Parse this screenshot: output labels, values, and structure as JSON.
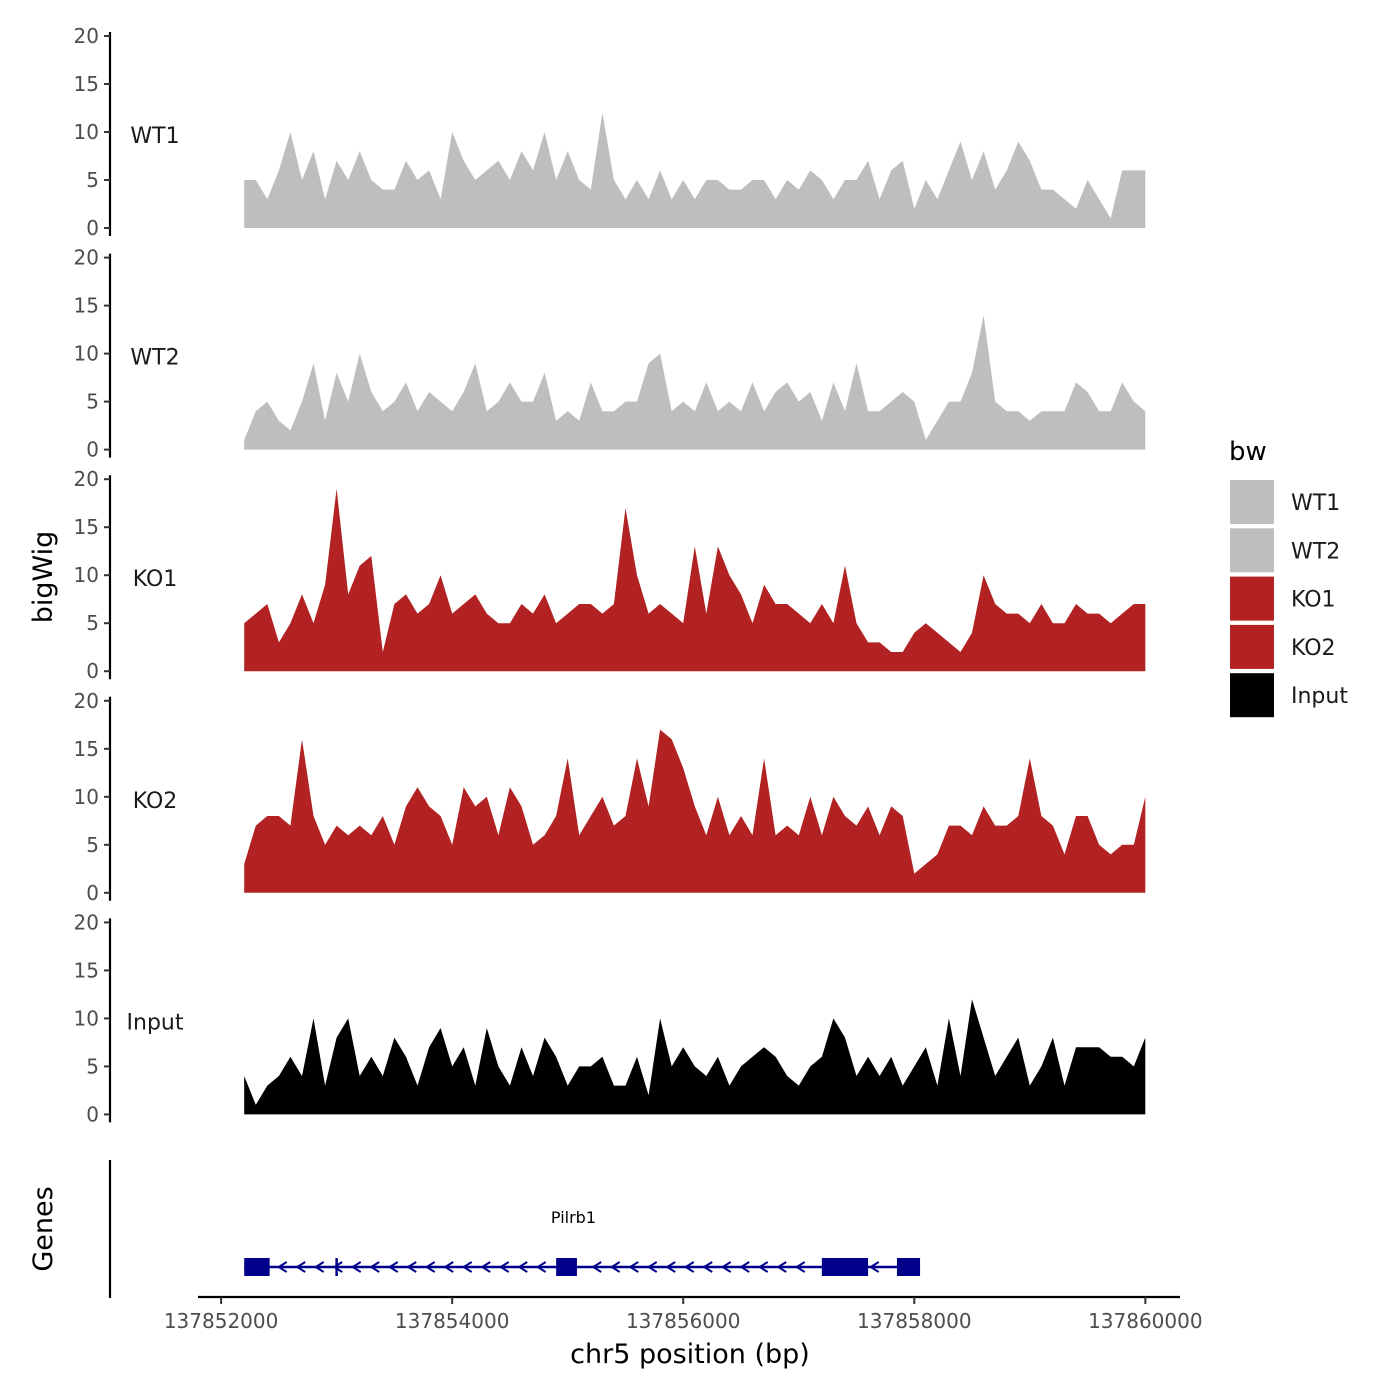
{
  "chart_data": {
    "type": "area",
    "ylabel": "bigWig",
    "xlabel": "chr5 position (bp)",
    "ylim": [
      0,
      20
    ],
    "yticks": [
      0,
      5,
      10,
      15,
      20
    ],
    "xlim": [
      137851800,
      137860300
    ],
    "xticks": [
      137852000,
      137854000,
      137856000,
      137858000,
      137860000
    ],
    "xtick_labels": [
      "137852000",
      "137854000",
      "137856000",
      "137858000",
      "137860000"
    ],
    "x": [
      137852200,
      137852300,
      137852400,
      137852500,
      137852600,
      137852700,
      137852800,
      137852900,
      137853000,
      137853100,
      137853200,
      137853300,
      137853400,
      137853500,
      137853600,
      137853700,
      137853800,
      137853900,
      137854000,
      137854100,
      137854200,
      137854300,
      137854400,
      137854500,
      137854600,
      137854700,
      137854800,
      137854900,
      137855000,
      137855100,
      137855200,
      137855300,
      137855400,
      137855500,
      137855600,
      137855700,
      137855800,
      137855900,
      137856000,
      137856100,
      137856200,
      137856300,
      137856400,
      137856500,
      137856600,
      137856700,
      137856800,
      137856900,
      137857000,
      137857100,
      137857200,
      137857300,
      137857400,
      137857500,
      137857600,
      137857700,
      137857800,
      137857900,
      137858000,
      137858100,
      137858200,
      137858300,
      137858400,
      137858500,
      137858600,
      137858700,
      137858800,
      137858900,
      137859000,
      137859100,
      137859200,
      137859300,
      137859400,
      137859500,
      137859600,
      137859700,
      137859800,
      137859900,
      137860000
    ],
    "series": [
      {
        "name": "WT1",
        "color": "#bebebe",
        "values": [
          5,
          5,
          3,
          6,
          10,
          5,
          8,
          3,
          7,
          5,
          8,
          5,
          4,
          4,
          7,
          5,
          6,
          3,
          10,
          7,
          5,
          6,
          7,
          5,
          8,
          6,
          10,
          5,
          8,
          5,
          4,
          12,
          5,
          3,
          5,
          3,
          6,
          3,
          5,
          3,
          5,
          5,
          4,
          4,
          5,
          5,
          3,
          5,
          4,
          6,
          5,
          3,
          5,
          5,
          7,
          3,
          6,
          7,
          2,
          5,
          3,
          6,
          9,
          5,
          8,
          4,
          6,
          9,
          7,
          4,
          4,
          3,
          2,
          5,
          3,
          1,
          6,
          6,
          6
        ]
      },
      {
        "name": "WT2",
        "color": "#bebebe",
        "values": [
          1,
          4,
          5,
          3,
          2,
          5,
          9,
          3,
          8,
          5,
          10,
          6,
          4,
          5,
          7,
          4,
          6,
          5,
          4,
          6,
          9,
          4,
          5,
          7,
          5,
          5,
          8,
          3,
          4,
          3,
          7,
          4,
          4,
          5,
          5,
          9,
          10,
          4,
          5,
          4,
          7,
          4,
          5,
          4,
          7,
          4,
          6,
          7,
          5,
          6,
          3,
          7,
          4,
          9,
          4,
          4,
          5,
          6,
          5,
          1,
          3,
          5,
          5,
          8,
          14,
          5,
          4,
          4,
          3,
          4,
          4,
          4,
          7,
          6,
          4,
          4,
          7,
          5,
          4
        ]
      },
      {
        "name": "KO1",
        "color": "#b22222",
        "values": [
          5,
          6,
          7,
          3,
          5,
          8,
          5,
          9,
          19,
          8,
          11,
          12,
          2,
          7,
          8,
          6,
          7,
          10,
          6,
          7,
          8,
          6,
          5,
          5,
          7,
          6,
          8,
          5,
          6,
          7,
          7,
          6,
          7,
          17,
          10,
          6,
          7,
          6,
          5,
          13,
          6,
          13,
          10,
          8,
          5,
          9,
          7,
          7,
          6,
          5,
          7,
          5,
          11,
          5,
          3,
          3,
          2,
          2,
          4,
          5,
          4,
          3,
          2,
          4,
          10,
          7,
          6,
          6,
          5,
          7,
          5,
          5,
          7,
          6,
          6,
          5,
          6,
          7,
          7
        ]
      },
      {
        "name": "KO2",
        "color": "#b22222",
        "values": [
          3,
          7,
          8,
          8,
          7,
          16,
          8,
          5,
          7,
          6,
          7,
          6,
          8,
          5,
          9,
          11,
          9,
          8,
          5,
          11,
          9,
          10,
          6,
          11,
          9,
          5,
          6,
          8,
          14,
          6,
          8,
          10,
          7,
          8,
          14,
          9,
          17,
          16,
          13,
          9,
          6,
          10,
          6,
          8,
          6,
          14,
          6,
          7,
          6,
          10,
          6,
          10,
          8,
          7,
          9,
          6,
          9,
          8,
          2,
          3,
          4,
          7,
          7,
          6,
          9,
          7,
          7,
          8,
          14,
          8,
          7,
          4,
          8,
          8,
          5,
          4,
          5,
          5,
          10
        ]
      },
      {
        "name": "Input",
        "color": "#000000",
        "values": [
          4,
          1,
          3,
          4,
          6,
          4,
          10,
          3,
          8,
          10,
          4,
          6,
          4,
          8,
          6,
          3,
          7,
          9,
          5,
          7,
          3,
          9,
          5,
          3,
          7,
          4,
          8,
          6,
          3,
          5,
          5,
          6,
          3,
          3,
          6,
          2,
          10,
          5,
          7,
          5,
          4,
          6,
          3,
          5,
          6,
          7,
          6,
          4,
          3,
          5,
          6,
          10,
          8,
          4,
          6,
          4,
          6,
          3,
          5,
          7,
          3,
          10,
          4,
          12,
          8,
          4,
          6,
          8,
          3,
          5,
          8,
          3,
          7,
          7,
          7,
          6,
          6,
          5,
          8
        ]
      }
    ],
    "legend": {
      "title": "bw",
      "position": "right",
      "entries": [
        {
          "label": "WT1",
          "color": "#bebebe"
        },
        {
          "label": "WT2",
          "color": "#bebebe"
        },
        {
          "label": "KO1",
          "color": "#b22222"
        },
        {
          "label": "KO2",
          "color": "#b22222"
        },
        {
          "label": "Input",
          "color": "#000000"
        }
      ]
    },
    "gene_track": {
      "ylabel": "Genes",
      "color": "#00008b",
      "gene": {
        "name": "Pilrb1",
        "start": 137852200,
        "end": 137858050,
        "strand": "-",
        "exons": [
          [
            137852200,
            137852420
          ],
          [
            137854900,
            137855080
          ],
          [
            137857200,
            137857600
          ],
          [
            137857850,
            137858050
          ]
        ]
      }
    }
  }
}
